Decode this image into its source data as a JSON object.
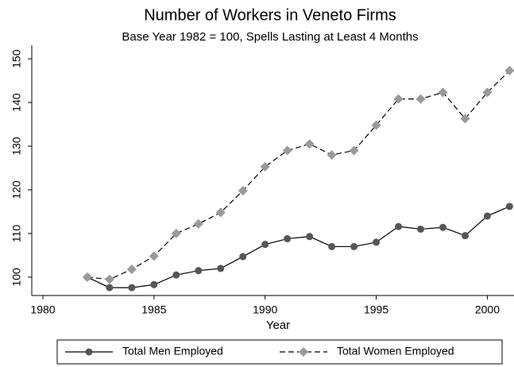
{
  "chart_data": {
    "type": "line",
    "title": "Number of Workers in Veneto Firms",
    "subtitle": "Base Year 1982 = 100, Spells Lasting at Least 4 Months",
    "x_label": "Year",
    "x": [
      1982,
      1983,
      1984,
      1985,
      1986,
      1987,
      1988,
      1989,
      1990,
      1991,
      1992,
      1993,
      1994,
      1995,
      1996,
      1997,
      1998,
      1999,
      2000,
      2001
    ],
    "series": [
      {
        "name": "Total Men Employed",
        "color": "#555555",
        "line_style": "solid",
        "marker": "circle",
        "values": [
          100,
          97.6,
          97.6,
          98.3,
          100.5,
          101.5,
          102,
          104.7,
          107.5,
          108.8,
          109.3,
          107,
          107,
          108,
          111.6,
          111,
          111.4,
          109.5,
          114,
          116.2
        ]
      },
      {
        "name": "Total Women Employed",
        "color": "#9a9a9a",
        "line_style": "dashed",
        "marker": "diamond",
        "values": [
          100,
          99.5,
          101.8,
          104.8,
          110,
          112.2,
          114.8,
          119.8,
          125.3,
          129,
          130.5,
          128,
          129,
          134.8,
          140.8,
          140.8,
          142.3,
          136.3,
          142.3,
          147.3
        ]
      }
    ],
    "xlim": [
      1979.5,
      2001.2
    ],
    "xticks": [
      1980,
      1985,
      1990,
      1995,
      2000
    ],
    "ylim": [
      95.8,
      153.1
    ],
    "yticks": [
      100,
      110,
      120,
      130,
      140,
      150
    ],
    "grid": false,
    "legend": "bottom"
  }
}
